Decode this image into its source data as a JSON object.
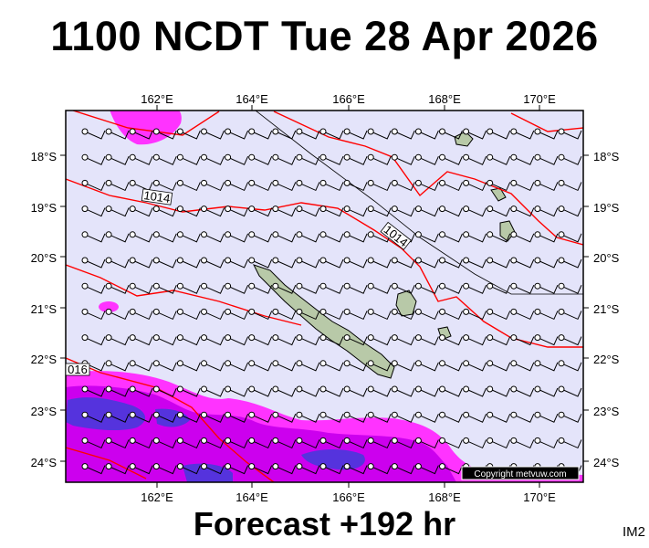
{
  "title": "1100 NCDT Tue 28 Apr 2026",
  "footer": "Forecast +192 hr",
  "image_tag": "IM2",
  "copyright": "Copyright metvuw.com",
  "map": {
    "lon_labels": [
      "162°E",
      "164°E",
      "166°E",
      "168°E",
      "170°E"
    ],
    "lat_labels": [
      "18°S",
      "19°S",
      "20°S",
      "21°S",
      "22°S",
      "23°S",
      "24°S"
    ],
    "isobar_labels": [
      "1014",
      "1014",
      "016"
    ],
    "colors": {
      "background": "#e4e4fa",
      "isobar": "#ff0000",
      "rain_light": "#ff33ff",
      "rain_medium": "#cc00ee",
      "rain_heavy": "#5533dd",
      "land": "#b8c9a8"
    }
  }
}
